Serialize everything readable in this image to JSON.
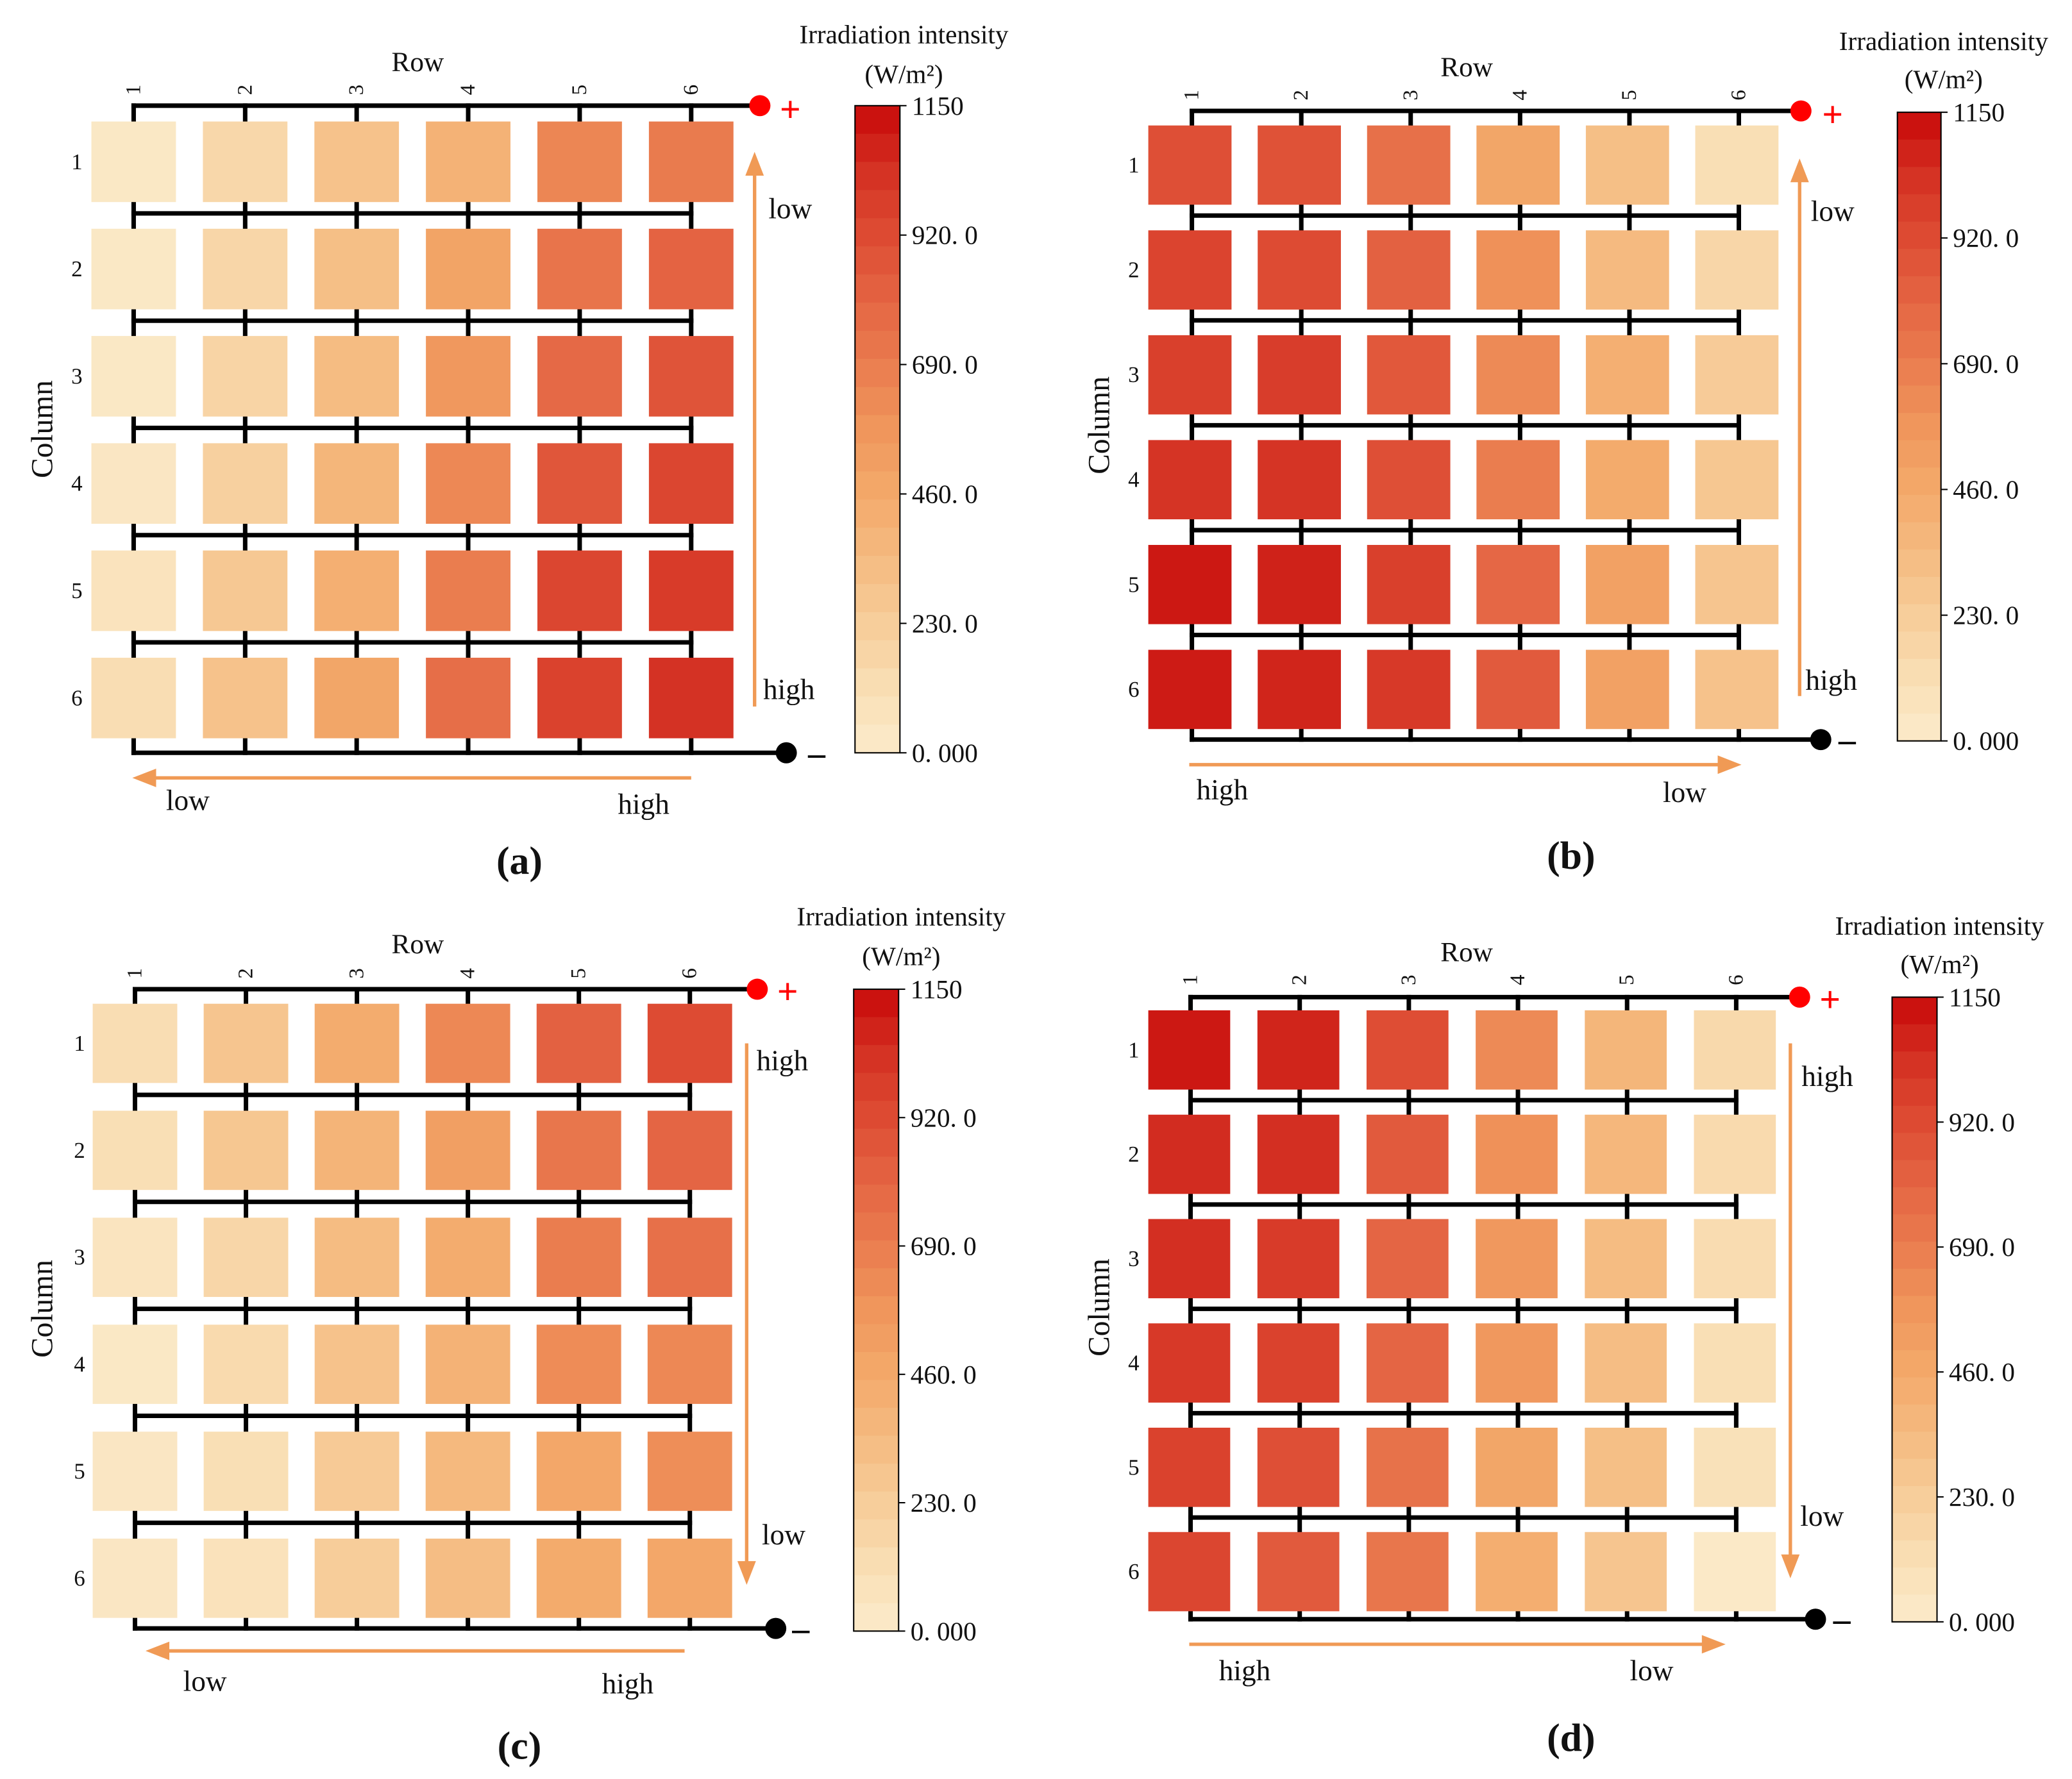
{
  "colors": {
    "trend_arrow": "#F09A55",
    "positive_terminal": "#FF0000",
    "negative_terminal": "#000000",
    "wire": "#000000"
  },
  "colorbar": {
    "title": "Irradiation intensity",
    "unit": "(W/m²)",
    "tick_labels": [
      "1150",
      "920. 0",
      "690. 0",
      "460. 0",
      "230. 0",
      "0. 000"
    ],
    "range": [
      0,
      1150
    ],
    "colormap": [
      {
        "value": 0,
        "color": "#FBEBCB"
      },
      {
        "value": 115,
        "color": "#F9DEB4"
      },
      {
        "value": 230,
        "color": "#F7CD9A"
      },
      {
        "value": 345,
        "color": "#F5BB81"
      },
      {
        "value": 460,
        "color": "#F3A96A"
      },
      {
        "value": 575,
        "color": "#F0965C"
      },
      {
        "value": 690,
        "color": "#EA7D4F"
      },
      {
        "value": 805,
        "color": "#E46443"
      },
      {
        "value": 920,
        "color": "#DD4B33"
      },
      {
        "value": 1035,
        "color": "#D43123"
      },
      {
        "value": 1150,
        "color": "#C80A0A"
      }
    ]
  },
  "chart_data": [
    {
      "type": "heatmap",
      "panel_label": "(a)",
      "xlabel": "Row",
      "ylabel": "Column",
      "x_categories": [
        "1",
        "2",
        "3",
        "4",
        "5",
        "6"
      ],
      "y_categories": [
        "1",
        "2",
        "3",
        "4",
        "5",
        "6"
      ],
      "value_range": [
        0,
        1150
      ],
      "values": [
        [
          30,
          160,
          300,
          400,
          650,
          700
        ],
        [
          30,
          170,
          320,
          490,
          730,
          810
        ],
        [
          30,
          180,
          340,
          560,
          780,
          880
        ],
        [
          40,
          210,
          380,
          640,
          870,
          940
        ],
        [
          70,
          260,
          420,
          690,
          940,
          990
        ],
        [
          120,
          300,
          480,
          760,
          960,
          1030
        ]
      ],
      "positive_terminal": "+",
      "negative_terminal": "–",
      "vertical_trend": {
        "top_label": "low",
        "bottom_label": "high"
      },
      "horizontal_trend": {
        "left_label": "low",
        "right_label": "high"
      }
    },
    {
      "type": "heatmap",
      "panel_label": "(b)",
      "xlabel": "Row",
      "ylabel": "Column",
      "x_categories": [
        "1",
        "2",
        "3",
        "4",
        "5",
        "6"
      ],
      "y_categories": [
        "1",
        "2",
        "3",
        "4",
        "5",
        "6"
      ],
      "value_range": [
        0,
        1150
      ],
      "values": [
        [
          900,
          890,
          750,
          480,
          320,
          110
        ],
        [
          950,
          920,
          820,
          600,
          350,
          170
        ],
        [
          970,
          980,
          860,
          630,
          420,
          240
        ],
        [
          1020,
          1020,
          900,
          690,
          450,
          270
        ],
        [
          1110,
          1080,
          970,
          790,
          510,
          280
        ],
        [
          1100,
          1070,
          1000,
          850,
          510,
          300
        ]
      ],
      "positive_terminal": "+",
      "negative_terminal": "–",
      "vertical_trend": {
        "top_label": "low",
        "bottom_label": "high"
      },
      "horizontal_trend": {
        "left_label": "high",
        "right_label": "low"
      }
    },
    {
      "type": "heatmap",
      "panel_label": "(c)",
      "xlabel": "Row",
      "ylabel": "Column",
      "x_categories": [
        "1",
        "2",
        "3",
        "4",
        "5",
        "6"
      ],
      "y_categories": [
        "1",
        "2",
        "3",
        "4",
        "5",
        "6"
      ],
      "value_range": [
        0,
        1150
      ],
      "values": [
        [
          120,
          280,
          440,
          640,
          820,
          920
        ],
        [
          110,
          270,
          390,
          520,
          720,
          800
        ],
        [
          60,
          170,
          340,
          440,
          690,
          750
        ],
        [
          30,
          140,
          300,
          400,
          620,
          640
        ],
        [
          40,
          110,
          250,
          360,
          470,
          610
        ],
        [
          40,
          80,
          230,
          330,
          450,
          470
        ]
      ],
      "positive_terminal": "+",
      "negative_terminal": "–",
      "vertical_trend": {
        "top_label": "high",
        "bottom_label": "low"
      },
      "horizontal_trend": {
        "left_label": "low",
        "right_label": "high"
      }
    },
    {
      "type": "heatmap",
      "panel_label": "(d)",
      "xlabel": "Row",
      "ylabel": "Column",
      "x_categories": [
        "1",
        "2",
        "3",
        "4",
        "5",
        "6"
      ],
      "y_categories": [
        "1",
        "2",
        "3",
        "4",
        "5",
        "6"
      ],
      "value_range": [
        0,
        1150
      ],
      "values": [
        [
          1110,
          1070,
          910,
          630,
          380,
          150
        ],
        [
          1050,
          1040,
          850,
          600,
          370,
          140
        ],
        [
          1040,
          990,
          800,
          560,
          340,
          130
        ],
        [
          1000,
          960,
          800,
          560,
          330,
          110
        ],
        [
          960,
          900,
          740,
          480,
          320,
          90
        ],
        [
          940,
          850,
          720,
          430,
          280,
          20
        ]
      ],
      "positive_terminal": "+",
      "negative_terminal": "–",
      "vertical_trend": {
        "top_label": "high",
        "bottom_label": "low"
      },
      "horizontal_trend": {
        "left_label": "high",
        "right_label": "low"
      }
    }
  ]
}
